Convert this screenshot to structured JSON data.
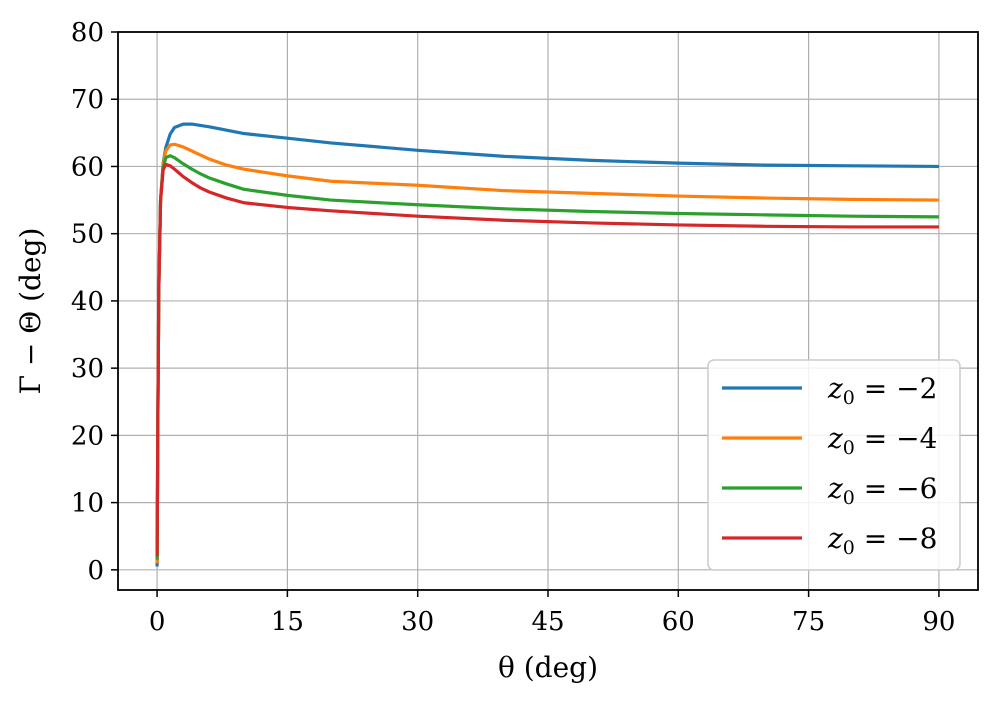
{
  "chart_data": {
    "type": "line",
    "title": "",
    "xlabel": "θ (deg)",
    "ylabel": "Γ − Θ (deg)",
    "xlim": [
      -4.5,
      94.5
    ],
    "ylim": [
      -3,
      80
    ],
    "xticks": [
      0,
      15,
      30,
      45,
      60,
      75,
      90
    ],
    "yticks": [
      0,
      10,
      20,
      30,
      40,
      50,
      60,
      70,
      80
    ],
    "grid": true,
    "legend_position": "bottom-right",
    "series": [
      {
        "name": "z_0 = −2",
        "label_var": "z",
        "label_sub": "0",
        "label_rest": " = −2",
        "color": "#1f77b4",
        "x": [
          0,
          0.1,
          0.2,
          0.4,
          0.7,
          1,
          1.5,
          2,
          3,
          4,
          5,
          6,
          8,
          10,
          15,
          20,
          30,
          40,
          50,
          60,
          70,
          80,
          90
        ],
        "y": [
          0.5,
          25,
          42,
          55,
          60.5,
          62.8,
          64.8,
          65.8,
          66.3,
          66.3,
          66.1,
          65.9,
          65.4,
          64.9,
          64.2,
          63.5,
          62.4,
          61.5,
          60.9,
          60.5,
          60.2,
          60.1,
          60.0
        ]
      },
      {
        "name": "z_0 = −4",
        "label_var": "z",
        "label_sub": "0",
        "label_rest": " = −4",
        "color": "#ff7f0e",
        "x": [
          0,
          0.1,
          0.2,
          0.4,
          0.7,
          1,
          1.5,
          2,
          3,
          4,
          5,
          6,
          8,
          10,
          15,
          20,
          30,
          40,
          50,
          60,
          70,
          80,
          90
        ],
        "y": [
          1.0,
          25,
          42,
          55,
          60.3,
          62.3,
          63.2,
          63.3,
          62.9,
          62.3,
          61.7,
          61.1,
          60.2,
          59.6,
          58.6,
          57.8,
          57.2,
          56.4,
          56.0,
          55.6,
          55.3,
          55.1,
          55.0
        ]
      },
      {
        "name": "z_0 = −6",
        "label_var": "z",
        "label_sub": "0",
        "label_rest": " = −6",
        "color": "#2ca02c",
        "x": [
          0,
          0.1,
          0.2,
          0.4,
          0.7,
          1,
          1.5,
          2,
          3,
          4,
          5,
          6,
          8,
          10,
          15,
          20,
          30,
          40,
          50,
          60,
          70,
          80,
          90
        ],
        "y": [
          1.5,
          25,
          42,
          55,
          59.8,
          61.3,
          61.6,
          61.3,
          60.4,
          59.6,
          58.9,
          58.3,
          57.4,
          56.6,
          55.7,
          55.0,
          54.3,
          53.7,
          53.3,
          53.0,
          52.8,
          52.6,
          52.5
        ]
      },
      {
        "name": "z_0 = −8",
        "label_var": "z",
        "label_sub": "0",
        "label_rest": " = −8",
        "color": "#d62728",
        "x": [
          0,
          0.1,
          0.2,
          0.4,
          0.7,
          1,
          1.5,
          2,
          3,
          4,
          5,
          6,
          8,
          10,
          15,
          20,
          30,
          40,
          50,
          60,
          70,
          80,
          90
        ],
        "y": [
          2.0,
          25,
          42,
          55,
          59.5,
          60.3,
          60.1,
          59.6,
          58.5,
          57.6,
          56.8,
          56.2,
          55.3,
          54.6,
          53.9,
          53.4,
          52.6,
          52.0,
          51.6,
          51.3,
          51.1,
          51.0,
          51.0
        ]
      }
    ]
  }
}
